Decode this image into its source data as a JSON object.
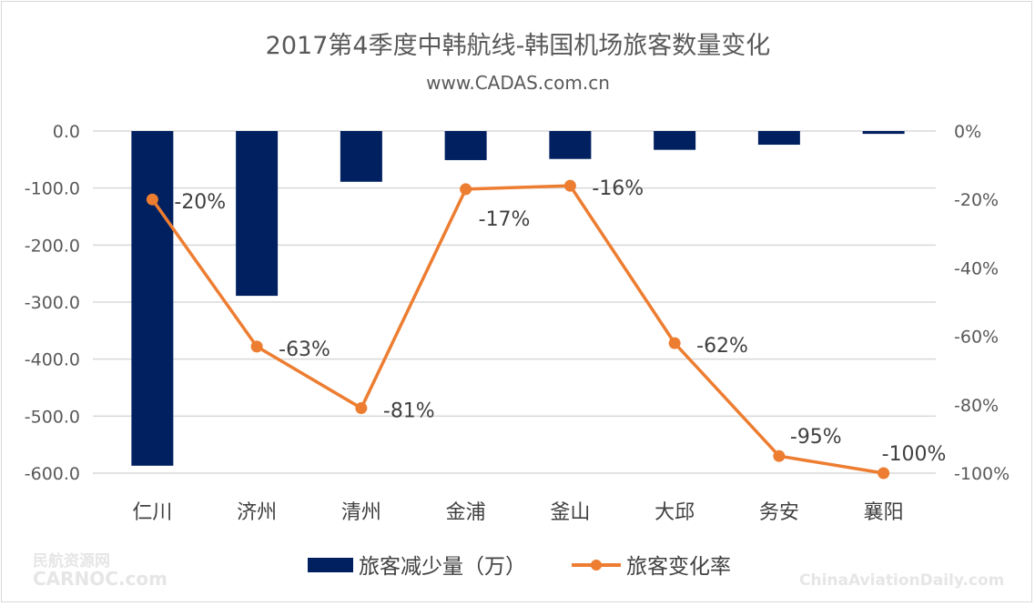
{
  "chart_data": {
    "type": "bar+line",
    "title": "2017第4季度中韩航线-韩国机场旅客数量变化",
    "subtitle": "www.CADAS.com.cn",
    "categories": [
      "仁川",
      "济州",
      "清州",
      "金浦",
      "釜山",
      "大邱",
      "务安",
      "襄阳"
    ],
    "series": [
      {
        "name": "旅客减少量（万）",
        "type": "bar",
        "axis": "left",
        "color": "#002060",
        "values": [
          -587,
          -289,
          -89,
          -51,
          -49,
          -33,
          -24,
          -5
        ]
      },
      {
        "name": "旅客变化率",
        "type": "line",
        "axis": "right",
        "color": "#ED7D31",
        "values": [
          -20,
          -63,
          -81,
          -17,
          -16,
          -62,
          -95,
          -100
        ],
        "labels": [
          "-20%",
          "-63%",
          "-81%",
          "-17%",
          "-16%",
          "-62%",
          "-95%",
          "-100%"
        ]
      }
    ],
    "left_axis": {
      "ylim": [
        -600,
        0
      ],
      "ticks": [
        "0.0",
        "-100.0",
        "-200.0",
        "-300.0",
        "-400.0",
        "-500.0",
        "-600.0"
      ]
    },
    "right_axis": {
      "ylim": [
        -100,
        0
      ],
      "ticks": [
        "0%",
        "-20%",
        "-40%",
        "-60%",
        "-80%",
        "-100%"
      ]
    },
    "grid": true,
    "legend_position": "bottom"
  },
  "watermarks": {
    "left_top": "民航资源网",
    "left_bottom": "CARNOC.com",
    "right": "ChinaAviationDaily.com"
  }
}
